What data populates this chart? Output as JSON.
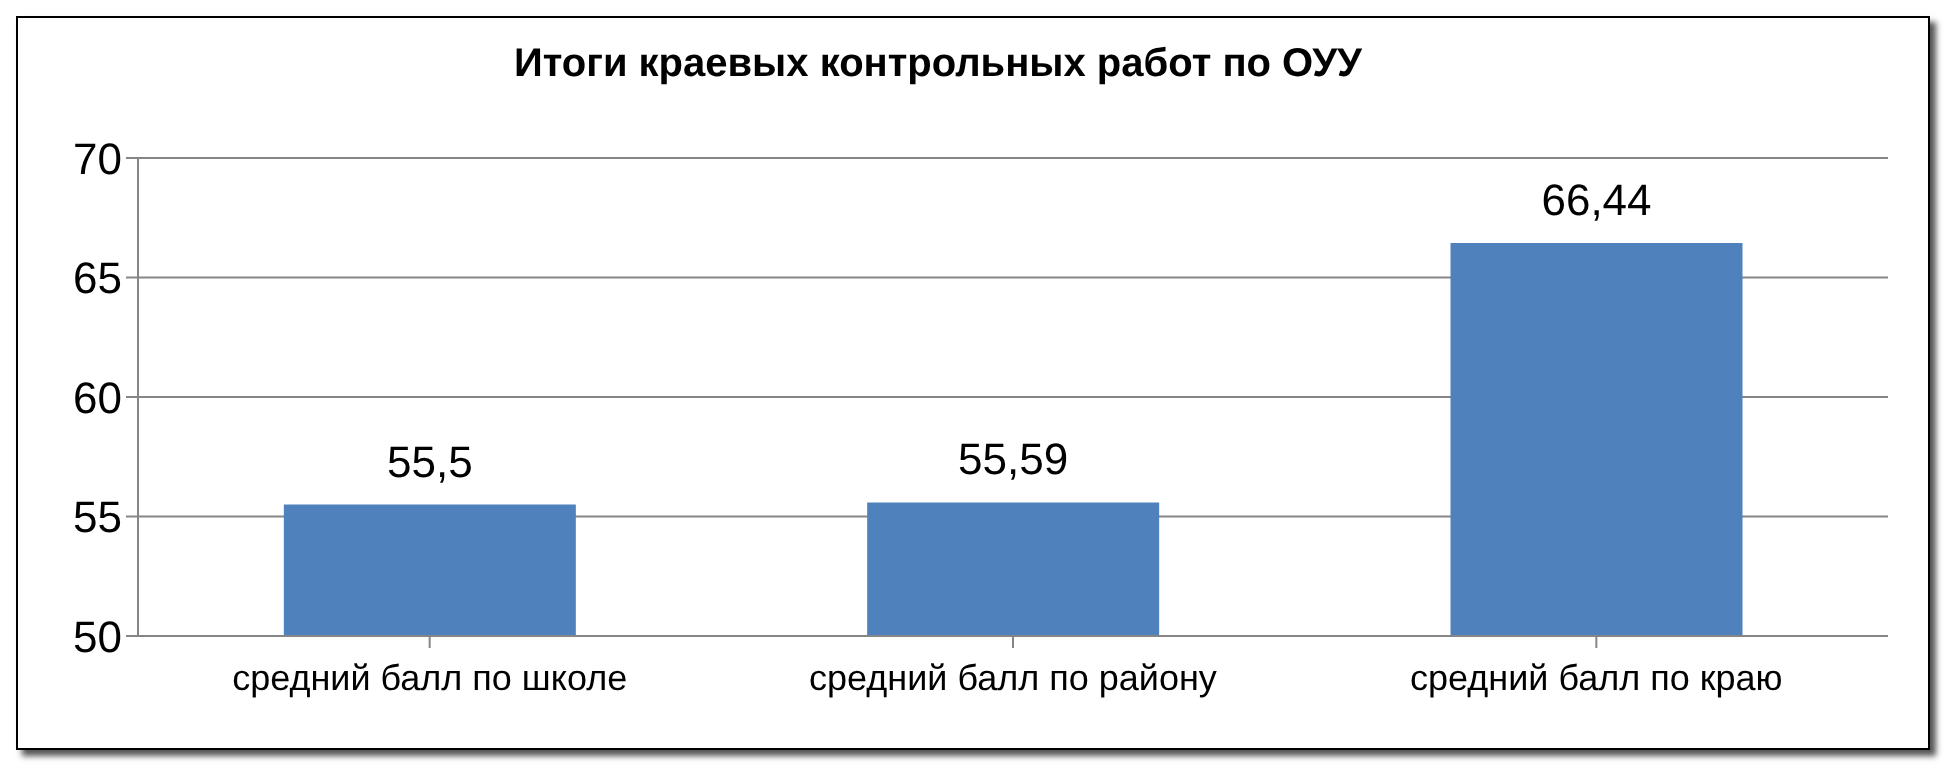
{
  "chart_data": {
    "type": "bar",
    "title": "Итоги краевых контрольных работ по ОУУ",
    "categories": [
      "средний балл по школе",
      "средний балл по району",
      "средний балл по краю"
    ],
    "values": [
      55.5,
      55.59,
      66.44
    ],
    "value_labels": [
      "55,5",
      "55,59",
      "66,44"
    ],
    "color": "#4f81bd",
    "ylim": [
      50,
      70
    ],
    "yticks": [
      50,
      55,
      60,
      65,
      70
    ],
    "grid": "y"
  }
}
